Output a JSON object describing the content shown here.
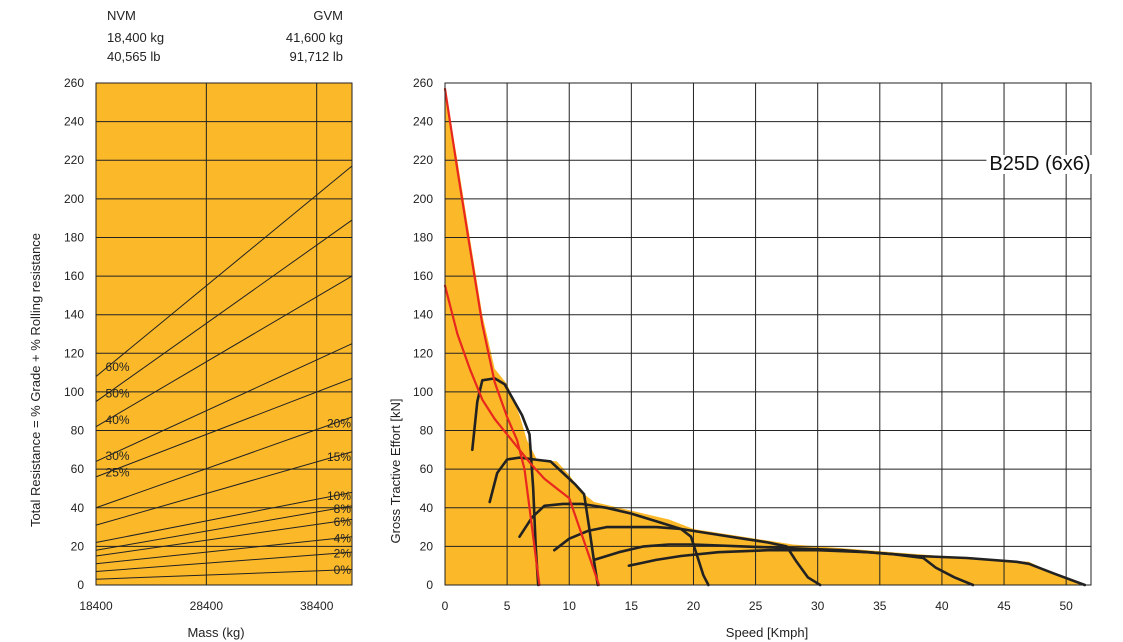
{
  "chart_data": [
    {
      "type": "line",
      "header": {
        "nvm_label": "NVM",
        "nvm_kg": "18,400 kg",
        "nvm_lb": "40,565 lb",
        "gvm_label": "GVM",
        "gvm_kg": "41,600 kg",
        "gvm_lb": "91,712 lb"
      },
      "xlabel": "Mass (kg)",
      "ylabel": "Total Resistance = % Grade + % Rolling resistance",
      "xlim": [
        18400,
        41600
      ],
      "ylim": [
        0,
        260
      ],
      "xticks": [
        "18400",
        "28400",
        "38400"
      ],
      "yticks": [
        "0",
        "20",
        "40",
        "60",
        "80",
        "100",
        "120",
        "140",
        "160",
        "180",
        "200",
        "220",
        "240",
        "260"
      ],
      "background_color": "#FBB829",
      "grade_lines": [
        {
          "label": "60%",
          "label_side": "left",
          "y_start": 108,
          "y_end": 217
        },
        {
          "label": "50%",
          "label_side": "left",
          "y_start": 95,
          "y_end": 189
        },
        {
          "label": "40%",
          "label_side": "left",
          "y_start": 82,
          "y_end": 160
        },
        {
          "label": "30%",
          "label_side": "left",
          "y_start": 64,
          "y_end": 125
        },
        {
          "label": "25%",
          "label_side": "left",
          "y_start": 56,
          "y_end": 107
        },
        {
          "label": "20%",
          "label_side": "right",
          "y_start": 40,
          "y_end": 87
        },
        {
          "label": "15%",
          "label_side": "right",
          "y_start": 31,
          "y_end": 69
        },
        {
          "label": "10%",
          "label_side": "right",
          "y_start": 22,
          "y_end": 48
        },
        {
          "label": "8%",
          "label_side": "right",
          "y_start": 18,
          "y_end": 41
        },
        {
          "label": "6%",
          "label_side": "right",
          "y_start": 15,
          "y_end": 34
        },
        {
          "label": "4%",
          "label_side": "right",
          "y_start": 11,
          "y_end": 25
        },
        {
          "label": "2%",
          "label_side": "right",
          "y_start": 7,
          "y_end": 17
        },
        {
          "label": "0%",
          "label_side": "right",
          "y_start": 3,
          "y_end": 8
        }
      ]
    },
    {
      "type": "area",
      "title": "B25D (6x6)",
      "xlabel": "Speed [Kmph]",
      "ylabel": "Gross Tractive Effort [kN]",
      "xlim": [
        0,
        52
      ],
      "ylim": [
        0,
        260
      ],
      "xticks": [
        "0",
        "5",
        "10",
        "15",
        "20",
        "25",
        "30",
        "35",
        "40",
        "45",
        "50"
      ],
      "yticks": [
        "0",
        "20",
        "40",
        "60",
        "80",
        "100",
        "120",
        "140",
        "160",
        "180",
        "200",
        "220",
        "240",
        "260"
      ],
      "fill_color": "#FBB829",
      "envelope": [
        [
          0,
          257
        ],
        [
          1,
          220
        ],
        [
          2,
          180
        ],
        [
          3,
          140
        ],
        [
          4,
          112
        ],
        [
          5,
          104
        ],
        [
          6,
          88
        ],
        [
          6.6,
          75
        ],
        [
          7.4,
          65
        ],
        [
          9,
          64
        ],
        [
          10,
          57
        ],
        [
          11,
          48
        ],
        [
          12,
          43
        ],
        [
          14,
          40
        ],
        [
          16,
          37
        ],
        [
          18,
          34
        ],
        [
          20,
          29
        ],
        [
          24,
          25
        ],
        [
          28,
          21
        ],
        [
          32,
          19
        ],
        [
          36,
          17
        ],
        [
          40,
          15
        ],
        [
          44,
          13
        ],
        [
          47,
          12
        ],
        [
          49,
          6
        ],
        [
          51.5,
          0
        ]
      ],
      "series": [
        {
          "color": "#E8281E",
          "points": [
            [
              0,
              257
            ],
            [
              1,
              215
            ],
            [
              2,
              175
            ],
            [
              3,
              135
            ],
            [
              4,
              105
            ],
            [
              5,
              87
            ],
            [
              5.8,
              75
            ],
            [
              6.4,
              60
            ],
            [
              6.8,
              40
            ],
            [
              7.2,
              20
            ],
            [
              7.6,
              0
            ]
          ]
        },
        {
          "color": "#E8281E",
          "points": [
            [
              0,
              155
            ],
            [
              1,
              130
            ],
            [
              2,
              112
            ],
            [
              3,
              96
            ],
            [
              4,
              86
            ],
            [
              5,
              78
            ],
            [
              6,
              70
            ],
            [
              7,
              62
            ],
            [
              8,
              55
            ],
            [
              9,
              50
            ],
            [
              10,
              45
            ],
            [
              10.8,
              30
            ],
            [
              11.6,
              15
            ],
            [
              12.4,
              0
            ]
          ]
        },
        {
          "color": "#222222",
          "points": [
            [
              2.2,
              70
            ],
            [
              2.6,
              95
            ],
            [
              3,
              106
            ],
            [
              4,
              107
            ],
            [
              4.8,
              104
            ],
            [
              5.5,
              96
            ],
            [
              6.2,
              88
            ],
            [
              6.8,
              78
            ],
            [
              7.1,
              50
            ],
            [
              7.3,
              20
            ],
            [
              7.5,
              0
            ]
          ]
        },
        {
          "color": "#222222",
          "points": [
            [
              3.6,
              43
            ],
            [
              4.2,
              58
            ],
            [
              5,
              65
            ],
            [
              6,
              66
            ],
            [
              7.2,
              65
            ],
            [
              8.5,
              64
            ],
            [
              9.5,
              58
            ],
            [
              10.5,
              52
            ],
            [
              11.2,
              47
            ],
            [
              11.6,
              30
            ],
            [
              12,
              12
            ],
            [
              12.3,
              0
            ]
          ]
        },
        {
          "color": "#222222",
          "points": [
            [
              6,
              25
            ],
            [
              7,
              35
            ],
            [
              8,
              41
            ],
            [
              9.5,
              42
            ],
            [
              11,
              42
            ],
            [
              13,
              40
            ],
            [
              15,
              37
            ],
            [
              17,
              33
            ],
            [
              19,
              29
            ],
            [
              19.8,
              25
            ],
            [
              20.3,
              15
            ],
            [
              20.8,
              5
            ],
            [
              21.2,
              0
            ]
          ]
        },
        {
          "color": "#222222",
          "points": [
            [
              8.8,
              18
            ],
            [
              10,
              24
            ],
            [
              11.5,
              28
            ],
            [
              13,
              30
            ],
            [
              15,
              30
            ],
            [
              17,
              30
            ],
            [
              19,
              29
            ],
            [
              21,
              27
            ],
            [
              24,
              24
            ],
            [
              26,
              22
            ],
            [
              27.5,
              20
            ],
            [
              28.3,
              12
            ],
            [
              29.2,
              4
            ],
            [
              30.2,
              0
            ]
          ]
        },
        {
          "color": "#222222",
          "points": [
            [
              12,
              13
            ],
            [
              14,
              17
            ],
            [
              16,
              20
            ],
            [
              18,
              21
            ],
            [
              20,
              21
            ],
            [
              24,
              20
            ],
            [
              28,
              19
            ],
            [
              32,
              18
            ],
            [
              36,
              16
            ],
            [
              38.5,
              14
            ],
            [
              39.5,
              9
            ],
            [
              41,
              4
            ],
            [
              42.5,
              0
            ]
          ]
        },
        {
          "color": "#222222",
          "points": [
            [
              14.8,
              10
            ],
            [
              17,
              13
            ],
            [
              19,
              15
            ],
            [
              22,
              17
            ],
            [
              26,
              18
            ],
            [
              30,
              18
            ],
            [
              34,
              17
            ],
            [
              38,
              15
            ],
            [
              42,
              14
            ],
            [
              46,
              12
            ],
            [
              47,
              11
            ],
            [
              49,
              6
            ],
            [
              51.5,
              0
            ]
          ]
        }
      ]
    }
  ]
}
